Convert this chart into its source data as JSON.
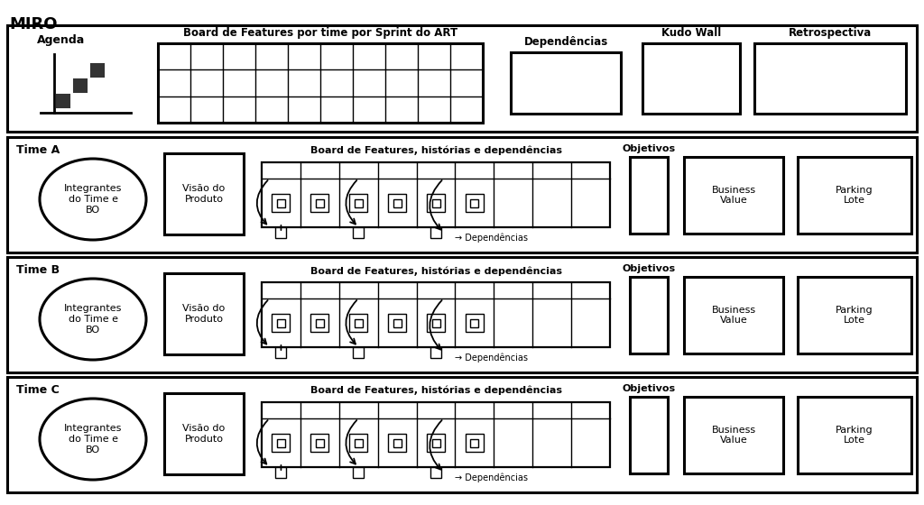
{
  "title": "MIRO",
  "bg": "#ffffff",
  "agenda_label": "Agenda",
  "board_art_label": "Board de Features por time por Sprint do ART",
  "dep_row0_label": "Dependências",
  "kudo_label": "Kudo Wall",
  "retro_label": "Retrospectiva",
  "teams": [
    "Time A",
    "Time B",
    "Time C"
  ],
  "circle_text": "Integrantes\ndo Time e\nBO",
  "visao_text": "Visão do\nProduto",
  "board_team_text": "Board de Features, histórias e dependências",
  "objetivos_text": "Objetivos",
  "business_text": "Business\nValue",
  "parking_text": "Parking\nLote",
  "dep_arrow_text": "→ Dependências",
  "lw_outer": 2.2,
  "lw_inner": 1.6,
  "lw_grid": 1.0
}
